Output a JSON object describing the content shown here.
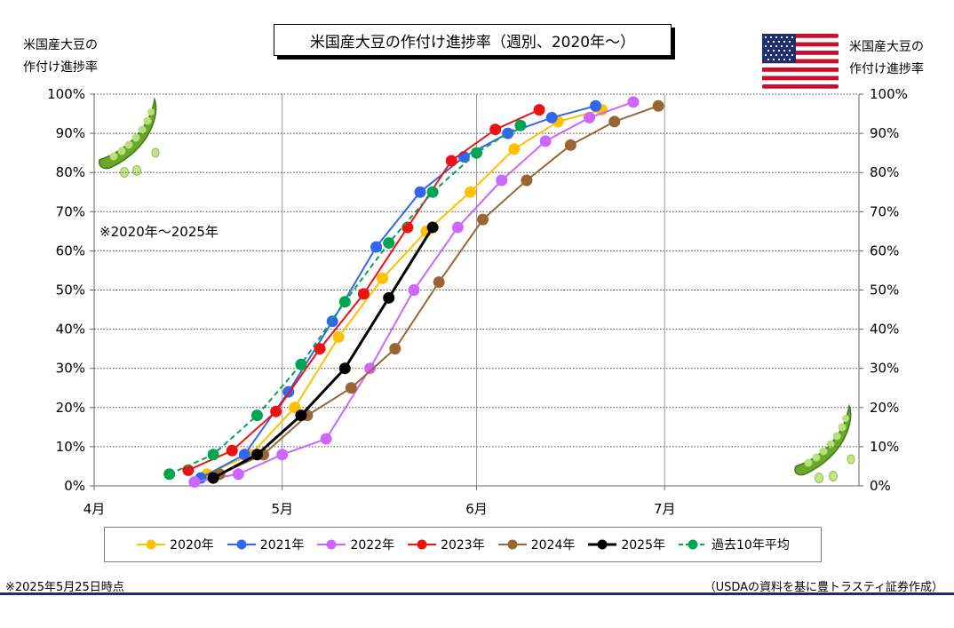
{
  "title": "米国産大豆の作付け進捗率（週別、2020年～）",
  "left_axis_caption": [
    "米国産大豆の",
    "作付け進捗率"
  ],
  "right_axis_caption": [
    "米国産大豆の",
    "作付け進捗率"
  ],
  "period_note": "※2020年～2025年",
  "footer": {
    "as_of": "※2025年5月25日時点",
    "source": "（USDAの資料を基に豊トラスティ証券作成）"
  },
  "chart_data": {
    "type": "line",
    "x_axis": {
      "ticks": [
        "4月",
        "5月",
        "6月",
        "7月"
      ],
      "tick_days": [
        0,
        30,
        61,
        91
      ],
      "range_days": [
        0,
        122
      ]
    },
    "y_axis": {
      "min": 0,
      "max": 100,
      "step": 10,
      "unit": "%",
      "both_sides": true
    },
    "grid": "vertical solid at month ticks, horizontal dotted every 10%",
    "legend_position": "bottom",
    "series": [
      {
        "name": "2020年",
        "color": "#ffc000",
        "dash": false,
        "x": [
          "4月19日",
          "4月26日",
          "5月3日",
          "5月10日",
          "5月17日",
          "5月24日",
          "5月31日",
          "6月7日",
          "6月14日",
          "6月21日",
          "6月28日"
        ],
        "days": [
          18,
          25,
          32,
          39,
          46,
          53,
          60,
          67,
          74,
          81,
          88
        ],
        "values": [
          3,
          8,
          20,
          38,
          53,
          65,
          75,
          86,
          93,
          96,
          null
        ]
      },
      {
        "name": "2021年",
        "color": "#3366ee",
        "dash": false,
        "x": [
          "4月18日",
          "4月25日",
          "5月2日",
          "5月9日",
          "5月16日",
          "5月23日",
          "5月30日",
          "6月6日",
          "6月13日",
          "6月20日"
        ],
        "days": [
          17,
          24,
          31,
          38,
          45,
          52,
          59,
          66,
          73,
          80
        ],
        "values": [
          2,
          8,
          24,
          42,
          61,
          75,
          84,
          90,
          94,
          97
        ]
      },
      {
        "name": "2022年",
        "color": "#cc66ff",
        "dash": false,
        "x": [
          "4月17日",
          "4月24日",
          "5月1日",
          "5月8日",
          "5月15日",
          "5月22日",
          "5月29日",
          "6月5日",
          "6月12日",
          "6月19日",
          "6月26日"
        ],
        "days": [
          16,
          23,
          30,
          37,
          44,
          51,
          58,
          65,
          72,
          79,
          86
        ],
        "values": [
          1,
          3,
          8,
          12,
          30,
          50,
          66,
          78,
          88,
          94,
          98
        ]
      },
      {
        "name": "2023年",
        "color": "#ee1111",
        "dash": false,
        "x": [
          "4月16日",
          "4月23日",
          "4月30日",
          "5月7日",
          "5月14日",
          "5月21日",
          "5月28日",
          "6月4日",
          "6月11日"
        ],
        "days": [
          15,
          22,
          29,
          36,
          43,
          50,
          57,
          64,
          71
        ],
        "values": [
          4,
          9,
          19,
          35,
          49,
          66,
          83,
          91,
          96
        ]
      },
      {
        "name": "2024年",
        "color": "#996633",
        "dash": false,
        "x": [
          "4月21日",
          "4月28日",
          "5月5日",
          "5月12日",
          "5月19日",
          "5月26日",
          "6月2日",
          "6月9日",
          "6月16日",
          "6月23日",
          "6月30日"
        ],
        "days": [
          20,
          27,
          34,
          41,
          48,
          55,
          62,
          69,
          76,
          83,
          90
        ],
        "values": [
          3,
          8,
          18,
          25,
          35,
          52,
          68,
          78,
          87,
          93,
          97
        ]
      },
      {
        "name": "2025年",
        "color": "#000000",
        "dash": false,
        "x": [
          "4月20日",
          "4月27日",
          "5月4日",
          "5月11日",
          "5月18日",
          "5月25日"
        ],
        "days": [
          19,
          26,
          33,
          40,
          47,
          54
        ],
        "values": [
          2,
          8,
          18,
          30,
          48,
          66
        ]
      },
      {
        "name": "過去10年平均",
        "color": "#00a550",
        "dash": true,
        "x": [
          "4月13日",
          "4月20日",
          "4月27日",
          "5月4日",
          "5月11日",
          "5月18日",
          "5月25日",
          "6月1日",
          "6月8日",
          "6月15日"
        ],
        "days": [
          12,
          19,
          26,
          33,
          40,
          47,
          54,
          61,
          68,
          75
        ],
        "values": [
          3,
          8,
          18,
          31,
          47,
          62,
          75,
          85,
          92,
          null
        ]
      }
    ]
  }
}
